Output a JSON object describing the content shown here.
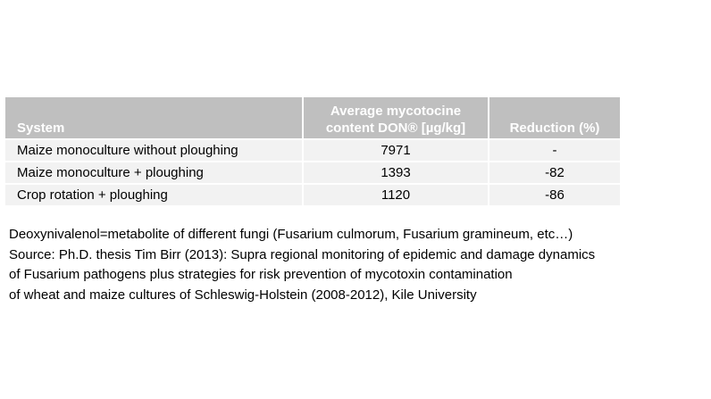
{
  "table": {
    "headers": [
      "System",
      "Average mycotocine content DON® [µg/kg]",
      "Reduction (%)"
    ],
    "rows": [
      [
        "Maize monoculture without ploughing",
        "7971",
        "-"
      ],
      [
        "Maize monoculture + ploughing",
        "1393",
        "-82"
      ],
      [
        "Crop rotation + ploughing",
        "1120",
        "-86"
      ]
    ]
  },
  "notes": [
    "Deoxynivalenol=metabolite of different fungi (Fusarium culmorum, Fusarium gramineum, etc…)",
    "Source: Ph.D. thesis Tim Birr (2013): Supra regional monitoring of epidemic and damage dynamics",
    "of Fusarium pathogens plus strategies for risk prevention of mycotoxin contamination",
    "of wheat and maize cultures of Schleswig-Holstein (2008-2012), Kile University"
  ],
  "colors": {
    "header_background": "#bfbfbf",
    "header_text": "#ffffff",
    "row_background": "#f2f2f2"
  }
}
